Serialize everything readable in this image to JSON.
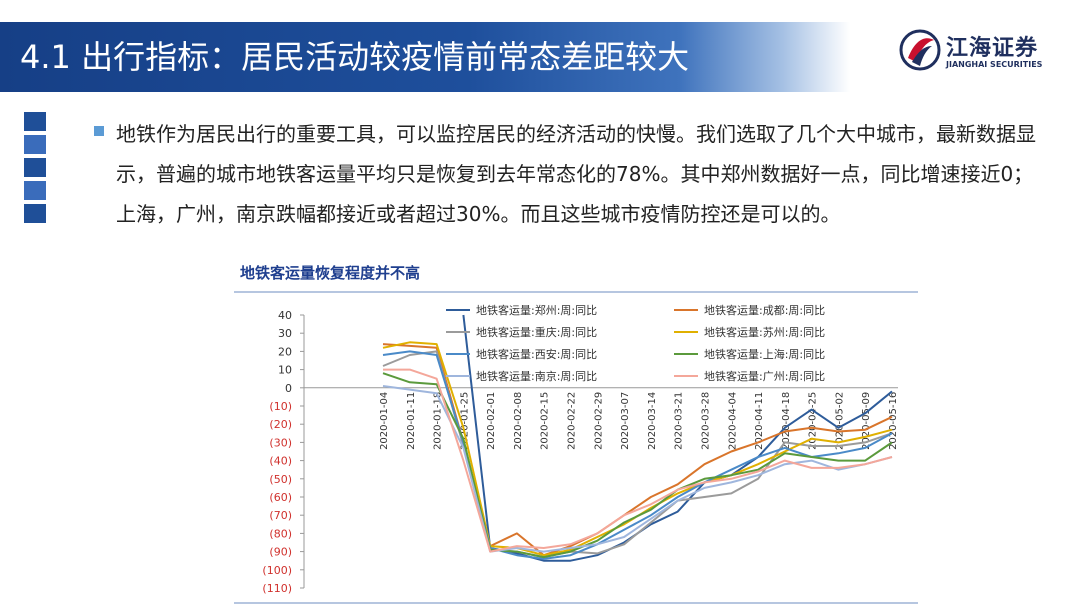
{
  "header": {
    "title": "4.1 出行指标：居民活动较疫情前常态差距较大"
  },
  "logo": {
    "name_cn": "江海证券",
    "name_en": "JIANGHAI SECURITIES"
  },
  "body": {
    "paragraph": "地铁作为居民出行的重要工具，可以监控居民的经济活动的快慢。我们选取了几个大中城市，最新数据显示，普遍的城市地铁客运量平均只是恢复到去年常态化的78%。其中郑州数据好一点，同比增速接近0；上海，广州，南京跌幅都接近或者超过30%。而且这些城市疫情防控还是可以的。"
  },
  "chart_data": {
    "type": "line",
    "title": "地铁客运量恢复程度并不高",
    "x": [
      "2020-01-04",
      "2020-01-11",
      "2020-01-18",
      "2020-01-25",
      "2020-02-01",
      "2020-02-08",
      "2020-02-15",
      "2020-02-22",
      "2020-02-29",
      "2020-03-07",
      "2020-03-14",
      "2020-03-21",
      "2020-03-28",
      "2020-04-04",
      "2020-04-11",
      "2020-04-18",
      "2020-04-25",
      "2020-05-02",
      "2020-05-09",
      "2020-05-16"
    ],
    "y_ticks": [
      "40",
      "30",
      "20",
      "10",
      "0",
      "(10)",
      "(20)",
      "(30)",
      "(40)",
      "(50)",
      "(60)",
      "(70)",
      "(80)",
      "(90)",
      "(100)",
      "(110)"
    ],
    "ylim": [
      -110,
      40
    ],
    "legend_position": "top",
    "grid": false,
    "series": [
      {
        "name": "地铁客运量:郑州:周:同比",
        "color": "#2e5c9a",
        "values": [
          null,
          null,
          null,
          40,
          -88,
          -91,
          -95,
          -95,
          -92,
          -85,
          -75,
          -68,
          -52,
          -48,
          -38,
          -22,
          -12,
          -22,
          -14,
          -2
        ]
      },
      {
        "name": "地铁客运量:成都:周:同比",
        "color": "#d9752b",
        "values": [
          24,
          23,
          22,
          -30,
          -87,
          -80,
          -92,
          -87,
          -80,
          -70,
          -60,
          -53,
          -42,
          -35,
          -30,
          -24,
          -22,
          -24,
          -23,
          -16
        ]
      },
      {
        "name": "地铁客运量:重庆:周:同比",
        "color": "#9b9b9b",
        "values": [
          12,
          18,
          20,
          -32,
          -89,
          -90,
          -93,
          -90,
          -91,
          -86,
          -74,
          -62,
          -60,
          -58,
          -50,
          -30,
          -32,
          -32,
          -30,
          -25
        ]
      },
      {
        "name": "地铁客运量:苏州:周:同比",
        "color": "#e0b000",
        "values": [
          22,
          25,
          24,
          -22,
          -87,
          -88,
          -92,
          -89,
          -82,
          -75,
          -66,
          -58,
          -52,
          -48,
          -42,
          -35,
          -28,
          -30,
          -27,
          -23
        ]
      },
      {
        "name": "地铁客运量:西安:周:同比",
        "color": "#4a8ac8",
        "values": [
          18,
          20,
          18,
          -30,
          -88,
          -92,
          -94,
          -92,
          -86,
          -78,
          -70,
          -60,
          -52,
          -45,
          -38,
          -33,
          -38,
          -36,
          -33,
          -25
        ]
      },
      {
        "name": "地铁客运量:上海:周:同比",
        "color": "#5b9a3c",
        "values": [
          8,
          3,
          2,
          -28,
          -89,
          -90,
          -93,
          -90,
          -84,
          -74,
          -67,
          -56,
          -50,
          -48,
          -45,
          -36,
          -38,
          -40,
          -40,
          -30
        ]
      },
      {
        "name": "地铁客运量:南京:周:同比",
        "color": "#9fb6dd",
        "values": [
          1,
          -1,
          -3,
          -33,
          -90,
          -88,
          -90,
          -88,
          -86,
          -82,
          -72,
          -62,
          -55,
          -52,
          -48,
          -42,
          -40,
          -45,
          -42,
          -38
        ]
      },
      {
        "name": "地铁客运量:广州:周:同比",
        "color": "#f4a79a",
        "values": [
          10,
          10,
          5,
          -40,
          -90,
          -87,
          -88,
          -86,
          -80,
          -70,
          -64,
          -56,
          -52,
          -50,
          -46,
          -40,
          -44,
          -44,
          -42,
          -38
        ]
      }
    ]
  }
}
